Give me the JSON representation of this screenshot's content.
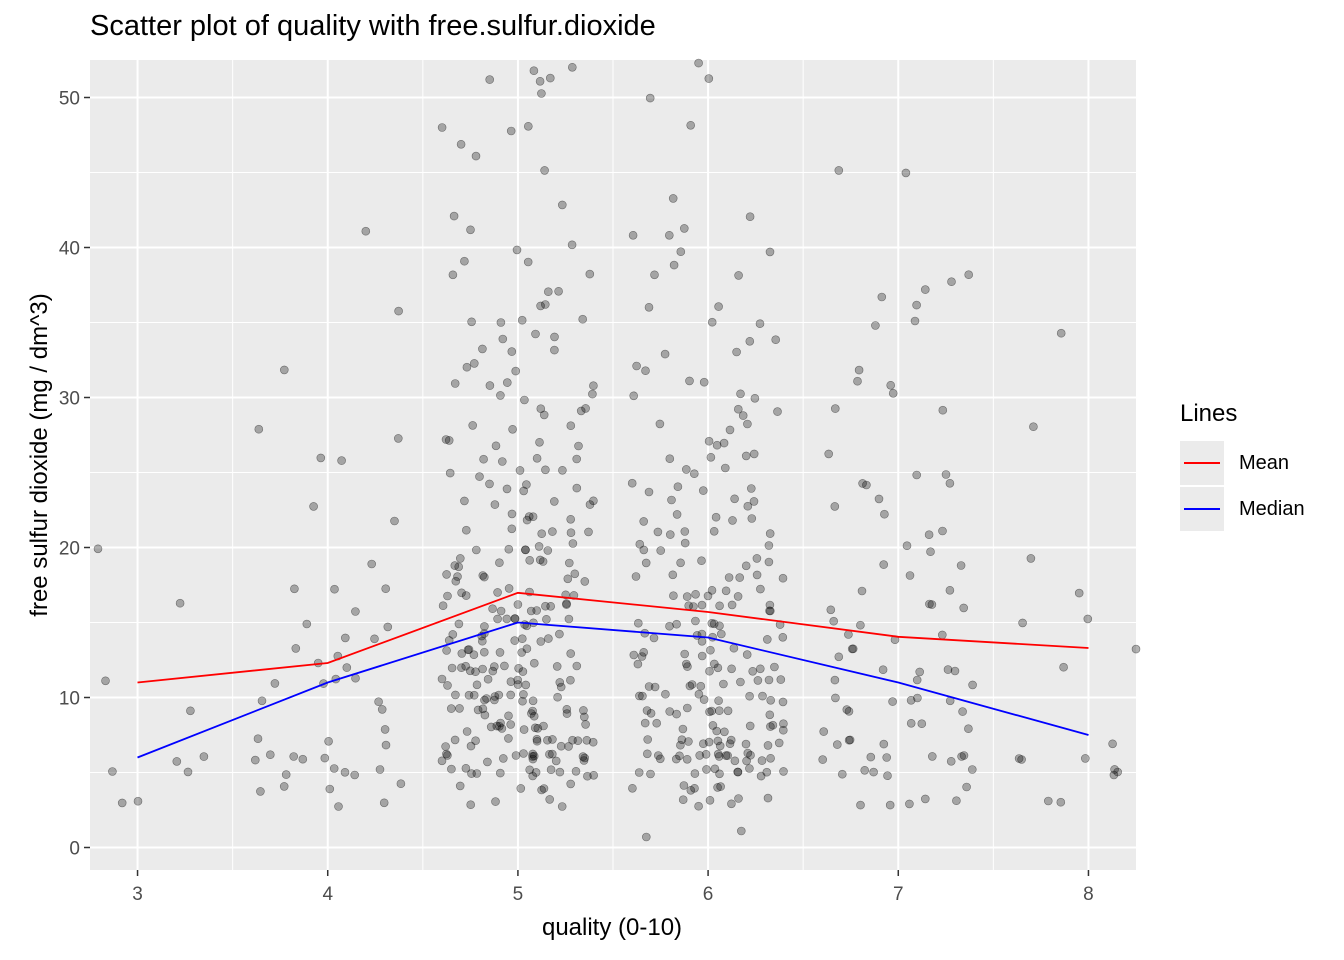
{
  "title": "Scatter plot of quality with free.sulfur.dioxide",
  "chart_data": {
    "type": "scatter",
    "title": "Scatter plot of quality with free.sulfur.dioxide",
    "xlabel": "quality (0-10)",
    "ylabel": "free sulfur dioxide (mg / dm^3)",
    "xlim": [
      2.75,
      8.25
    ],
    "ylim": [
      -1.5,
      52.5
    ],
    "x_ticks": [
      "3",
      "4",
      "5",
      "6",
      "7",
      "8"
    ],
    "y_ticks": [
      "0",
      "10",
      "20",
      "30",
      "40",
      "50"
    ],
    "grid": true,
    "point_color": "#000000",
    "point_opacity": 0.3,
    "jitter_width": 0.4,
    "points_by_quality": {
      "3": [
        3,
        5,
        5,
        6,
        6,
        9,
        16,
        20,
        11,
        3
      ],
      "4": [
        4,
        4,
        5,
        5,
        5,
        5,
        6,
        6,
        6,
        6,
        6,
        7,
        7,
        8,
        9,
        10,
        10,
        11,
        11,
        11,
        12,
        12,
        13,
        13,
        14,
        14,
        15,
        15,
        16,
        17,
        17,
        17,
        19,
        22,
        23,
        26,
        26,
        27,
        28,
        32,
        36,
        41,
        3,
        3,
        4,
        4,
        7,
        11,
        5
      ],
      "5": [
        3,
        3,
        4,
        4,
        5,
        5,
        5,
        5,
        5,
        5,
        5,
        5,
        6,
        6,
        6,
        6,
        6,
        6,
        6,
        6,
        6,
        6,
        7,
        7,
        7,
        7,
        7,
        7,
        7,
        7,
        8,
        8,
        8,
        8,
        8,
        8,
        8,
        9,
        9,
        9,
        9,
        9,
        9,
        9,
        9,
        10,
        10,
        10,
        10,
        10,
        10,
        10,
        10,
        11,
        11,
        11,
        11,
        11,
        11,
        11,
        12,
        12,
        12,
        12,
        12,
        12,
        12,
        12,
        12,
        13,
        13,
        13,
        13,
        13,
        13,
        13,
        14,
        14,
        14,
        14,
        14,
        14,
        14,
        15,
        15,
        15,
        15,
        15,
        15,
        15,
        15,
        16,
        16,
        16,
        16,
        16,
        16,
        16,
        17,
        17,
        17,
        17,
        17,
        17,
        18,
        18,
        18,
        18,
        18,
        18,
        19,
        19,
        19,
        19,
        19,
        19,
        20,
        20,
        20,
        20,
        20,
        21,
        21,
        21,
        21,
        21,
        22,
        22,
        22,
        22,
        23,
        23,
        23,
        23,
        24,
        24,
        24,
        24,
        25,
        25,
        25,
        25,
        26,
        26,
        26,
        27,
        27,
        27,
        27,
        28,
        28,
        28,
        29,
        29,
        29,
        30,
        30,
        30,
        31,
        31,
        31,
        32,
        32,
        32,
        33,
        33,
        34,
        34,
        34,
        35,
        35,
        35,
        36,
        36,
        37,
        37,
        38,
        38,
        39,
        39,
        40,
        40,
        41,
        42,
        43,
        45,
        46,
        47,
        48,
        48,
        48,
        50,
        51,
        51,
        51,
        52,
        52,
        3,
        3,
        4,
        4,
        4,
        5,
        5,
        5,
        5,
        5,
        6,
        6,
        6,
        6,
        6,
        6,
        6,
        7,
        7,
        7,
        7,
        7,
        7,
        7,
        8,
        8,
        8,
        8,
        8,
        9,
        9,
        9,
        9,
        9,
        10,
        10,
        10,
        10,
        10,
        11,
        11,
        11,
        11,
        12,
        12,
        12,
        12,
        12,
        13,
        13,
        13,
        14,
        14,
        14,
        15,
        15,
        15,
        16,
        16,
        16,
        17,
        17,
        18,
        18,
        19,
        19,
        20,
        20,
        21,
        22,
        23,
        24,
        25,
        26,
        27,
        29,
        31,
        33,
        35
      ],
      "6": [
        1,
        1,
        3,
        3,
        3,
        3,
        4,
        4,
        4,
        4,
        5,
        5,
        5,
        5,
        5,
        5,
        5,
        5,
        6,
        6,
        6,
        6,
        6,
        6,
        6,
        6,
        6,
        6,
        6,
        6,
        7,
        7,
        7,
        7,
        7,
        7,
        7,
        7,
        8,
        8,
        8,
        8,
        8,
        8,
        8,
        9,
        9,
        9,
        9,
        9,
        9,
        9,
        10,
        10,
        10,
        10,
        10,
        10,
        10,
        11,
        11,
        11,
        11,
        11,
        11,
        11,
        12,
        12,
        12,
        12,
        12,
        12,
        12,
        13,
        13,
        13,
        13,
        13,
        13,
        14,
        14,
        14,
        14,
        14,
        14,
        14,
        15,
        15,
        15,
        15,
        15,
        15,
        16,
        16,
        16,
        16,
        16,
        16,
        17,
        17,
        17,
        17,
        17,
        17,
        18,
        18,
        18,
        18,
        18,
        19,
        19,
        19,
        19,
        19,
        20,
        20,
        20,
        20,
        21,
        21,
        21,
        21,
        22,
        22,
        22,
        22,
        23,
        23,
        23,
        24,
        24,
        24,
        24,
        25,
        25,
        25,
        26,
        26,
        26,
        27,
        27,
        27,
        28,
        28,
        29,
        29,
        29,
        30,
        30,
        31,
        31,
        32,
        32,
        33,
        33,
        34,
        34,
        35,
        35,
        36,
        36,
        38,
        38,
        39,
        40,
        40,
        41,
        41,
        41,
        42,
        43,
        48,
        50,
        51,
        52,
        3,
        3,
        4,
        4,
        5,
        5,
        5,
        5,
        6,
        6,
        6,
        6,
        6,
        6,
        7,
        7,
        7,
        7,
        7,
        8,
        8,
        8,
        8,
        9,
        9,
        9,
        10,
        10,
        10,
        11,
        11,
        11,
        12,
        12,
        12,
        13,
        13,
        14,
        14,
        15,
        15,
        16,
        16,
        17,
        17,
        18,
        19,
        20,
        21,
        22,
        23,
        24,
        26,
        28,
        30
      ],
      "7": [
        3,
        3,
        3,
        3,
        4,
        5,
        5,
        5,
        5,
        6,
        6,
        6,
        6,
        6,
        6,
        7,
        7,
        7,
        7,
        8,
        8,
        8,
        9,
        9,
        9,
        10,
        10,
        10,
        10,
        11,
        11,
        11,
        12,
        12,
        12,
        13,
        13,
        13,
        14,
        14,
        15,
        15,
        16,
        16,
        16,
        17,
        17,
        18,
        19,
        19,
        20,
        21,
        21,
        22,
        23,
        23,
        24,
        24,
        25,
        25,
        26,
        29,
        29,
        30,
        31,
        31,
        32,
        35,
        35,
        36,
        37,
        37,
        38,
        38,
        45,
        45,
        3,
        5,
        6,
        8,
        10,
        12,
        14,
        16,
        20,
        24
      ],
      "8": [
        5,
        5,
        6,
        6,
        6,
        7,
        12,
        13,
        15,
        15,
        17,
        19,
        28,
        34,
        5,
        3,
        3
      ]
    },
    "series": [
      {
        "name": "Mean",
        "color": "#ff0000",
        "x": [
          3,
          4,
          5,
          6,
          7,
          8
        ],
        "y": [
          11.0,
          12.3,
          16.98,
          15.7,
          14.05,
          13.3
        ]
      },
      {
        "name": "Median",
        "color": "#0000ff",
        "x": [
          3,
          4,
          5,
          6,
          7,
          8
        ],
        "y": [
          6,
          11,
          15,
          14,
          11,
          7.5
        ]
      }
    ],
    "legend": {
      "title": "Lines",
      "position": "right"
    }
  }
}
